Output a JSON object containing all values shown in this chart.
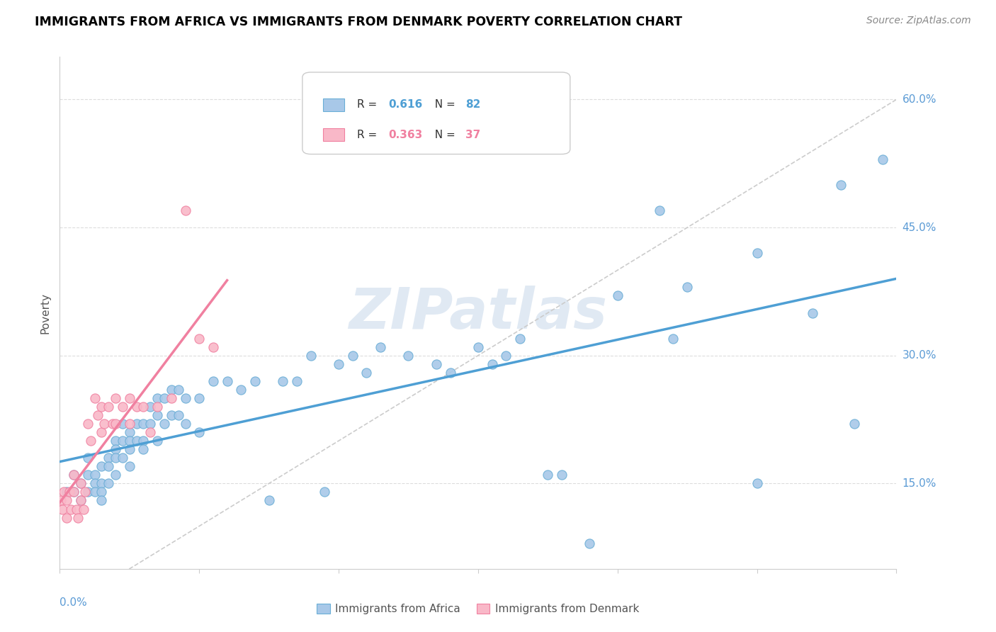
{
  "title": "IMMIGRANTS FROM AFRICA VS IMMIGRANTS FROM DENMARK POVERTY CORRELATION CHART",
  "source": "Source: ZipAtlas.com",
  "ylabel": "Poverty",
  "xlim": [
    0.0,
    0.6
  ],
  "ylim": [
    0.05,
    0.65
  ],
  "ytick_vals": [
    0.15,
    0.3,
    0.45,
    0.6
  ],
  "xtick_vals": [
    0.0,
    0.1,
    0.2,
    0.3,
    0.4,
    0.5,
    0.6
  ],
  "africa_color_fill": "#a8c8e8",
  "africa_color_edge": "#6aaed6",
  "africa_line_color": "#4e9fd4",
  "denmark_color_fill": "#f9b8c8",
  "denmark_color_edge": "#f080a0",
  "denmark_line_color": "#f080a0",
  "diag_color": "#cccccc",
  "grid_color": "#dddddd",
  "right_label_color": "#5b9bd5",
  "watermark_color": "#c8d8ea",
  "watermark_text": "ZIPatlas",
  "legend_africa_R": "0.616",
  "legend_africa_N": "82",
  "legend_denmark_R": "0.363",
  "legend_denmark_N": "37",
  "africa_scatter_x": [
    0.005,
    0.01,
    0.01,
    0.015,
    0.015,
    0.02,
    0.02,
    0.02,
    0.025,
    0.025,
    0.025,
    0.03,
    0.03,
    0.03,
    0.03,
    0.035,
    0.035,
    0.035,
    0.04,
    0.04,
    0.04,
    0.04,
    0.045,
    0.045,
    0.045,
    0.05,
    0.05,
    0.05,
    0.05,
    0.055,
    0.055,
    0.06,
    0.06,
    0.06,
    0.065,
    0.065,
    0.07,
    0.07,
    0.07,
    0.075,
    0.075,
    0.08,
    0.08,
    0.085,
    0.085,
    0.09,
    0.09,
    0.1,
    0.1,
    0.11,
    0.12,
    0.13,
    0.14,
    0.15,
    0.16,
    0.17,
    0.18,
    0.19,
    0.2,
    0.21,
    0.22,
    0.23,
    0.25,
    0.27,
    0.28,
    0.3,
    0.31,
    0.32,
    0.33,
    0.35,
    0.36,
    0.38,
    0.4,
    0.43,
    0.44,
    0.45,
    0.5,
    0.5,
    0.54,
    0.56,
    0.57,
    0.59
  ],
  "africa_scatter_y": [
    0.14,
    0.16,
    0.14,
    0.15,
    0.13,
    0.16,
    0.14,
    0.18,
    0.16,
    0.15,
    0.14,
    0.17,
    0.15,
    0.14,
    0.13,
    0.18,
    0.17,
    0.15,
    0.2,
    0.19,
    0.18,
    0.16,
    0.22,
    0.2,
    0.18,
    0.21,
    0.2,
    0.19,
    0.17,
    0.22,
    0.2,
    0.22,
    0.2,
    0.19,
    0.24,
    0.22,
    0.25,
    0.23,
    0.2,
    0.25,
    0.22,
    0.26,
    0.23,
    0.26,
    0.23,
    0.25,
    0.22,
    0.25,
    0.21,
    0.27,
    0.27,
    0.26,
    0.27,
    0.13,
    0.27,
    0.27,
    0.3,
    0.14,
    0.29,
    0.3,
    0.28,
    0.31,
    0.3,
    0.29,
    0.28,
    0.31,
    0.29,
    0.3,
    0.32,
    0.16,
    0.16,
    0.08,
    0.37,
    0.47,
    0.32,
    0.38,
    0.42,
    0.15,
    0.35,
    0.5,
    0.22,
    0.53
  ],
  "denmark_scatter_x": [
    0.001,
    0.002,
    0.003,
    0.005,
    0.005,
    0.007,
    0.008,
    0.01,
    0.01,
    0.012,
    0.013,
    0.015,
    0.015,
    0.017,
    0.018,
    0.02,
    0.022,
    0.025,
    0.027,
    0.03,
    0.03,
    0.032,
    0.035,
    0.038,
    0.04,
    0.04,
    0.045,
    0.05,
    0.05,
    0.055,
    0.06,
    0.065,
    0.07,
    0.08,
    0.09,
    0.1,
    0.11
  ],
  "denmark_scatter_y": [
    0.13,
    0.12,
    0.14,
    0.11,
    0.13,
    0.14,
    0.12,
    0.16,
    0.14,
    0.12,
    0.11,
    0.15,
    0.13,
    0.12,
    0.14,
    0.22,
    0.2,
    0.25,
    0.23,
    0.24,
    0.21,
    0.22,
    0.24,
    0.22,
    0.25,
    0.22,
    0.24,
    0.25,
    0.22,
    0.24,
    0.24,
    0.21,
    0.24,
    0.25,
    0.47,
    0.32,
    0.31
  ]
}
